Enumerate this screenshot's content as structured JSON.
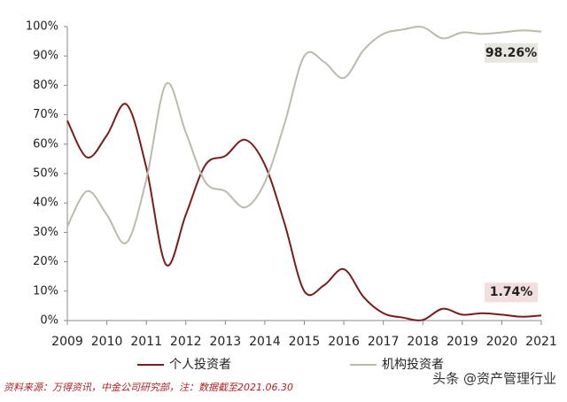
{
  "chart_data": {
    "type": "line",
    "x": [
      2009,
      2009.5,
      2010,
      2010.5,
      2011,
      2011.5,
      2012,
      2012.5,
      2013,
      2013.5,
      2014,
      2014.5,
      2015,
      2015.5,
      2016,
      2016.5,
      2017,
      2017.5,
      2018,
      2018.5,
      2019,
      2019.5,
      2020,
      2020.5,
      2021
    ],
    "series": [
      {
        "name": "个人投资者",
        "color": "#7b1c1c",
        "values": [
          68,
          55.5,
          63,
          73.5,
          52,
          19,
          36,
          53,
          56,
          61.5,
          53,
          33,
          10,
          12,
          17.5,
          8,
          2.5,
          1,
          0.2,
          4,
          2,
          2.5,
          2,
          1.3,
          1.74
        ],
        "value_labels": [
          null,
          null,
          null,
          null,
          null,
          null,
          null,
          null,
          null,
          null,
          null,
          null,
          null,
          null,
          null,
          null,
          null,
          null,
          null,
          null,
          null,
          null,
          null,
          null,
          "1.74%"
        ],
        "label_bg": "#f2dede"
      },
      {
        "name": "机构投资者",
        "color": "#bcb9ad",
        "values": [
          32,
          44,
          36,
          26.5,
          48,
          80.5,
          64,
          47,
          44,
          38.5,
          47,
          67,
          90,
          88,
          82.5,
          92,
          97.5,
          99,
          99.8,
          96,
          98,
          97.5,
          98,
          98.7,
          98.26
        ],
        "value_labels": [
          null,
          null,
          null,
          null,
          null,
          null,
          null,
          null,
          null,
          null,
          null,
          null,
          null,
          null,
          null,
          null,
          null,
          null,
          null,
          null,
          null,
          null,
          null,
          null,
          "98.26%"
        ],
        "label_bg": "#e8e6df"
      }
    ],
    "xlim": [
      2009,
      2021
    ],
    "xticks": [
      2009,
      2010,
      2011,
      2012,
      2013,
      2014,
      2015,
      2016,
      2017,
      2018,
      2019,
      2020,
      2021
    ],
    "ylim": [
      0,
      100
    ],
    "yticks": [
      {
        "value": 0,
        "label": "0%"
      },
      {
        "value": 10,
        "label": "10%"
      },
      {
        "value": 20,
        "label": "20%"
      },
      {
        "value": 30,
        "label": "30%"
      },
      {
        "value": 40,
        "label": "40%"
      },
      {
        "value": 50,
        "label": "50%"
      },
      {
        "value": 60,
        "label": "60%"
      },
      {
        "value": 70,
        "label": "70%"
      },
      {
        "value": 80,
        "label": "80%"
      },
      {
        "value": 90,
        "label": "90%"
      },
      {
        "value": 100,
        "label": "100%"
      }
    ],
    "grid": false,
    "source": "资料来源：万得资讯，中金公司研究部，注：数据截至2021.06.30",
    "watermark": "头条 @资产管理行业"
  }
}
